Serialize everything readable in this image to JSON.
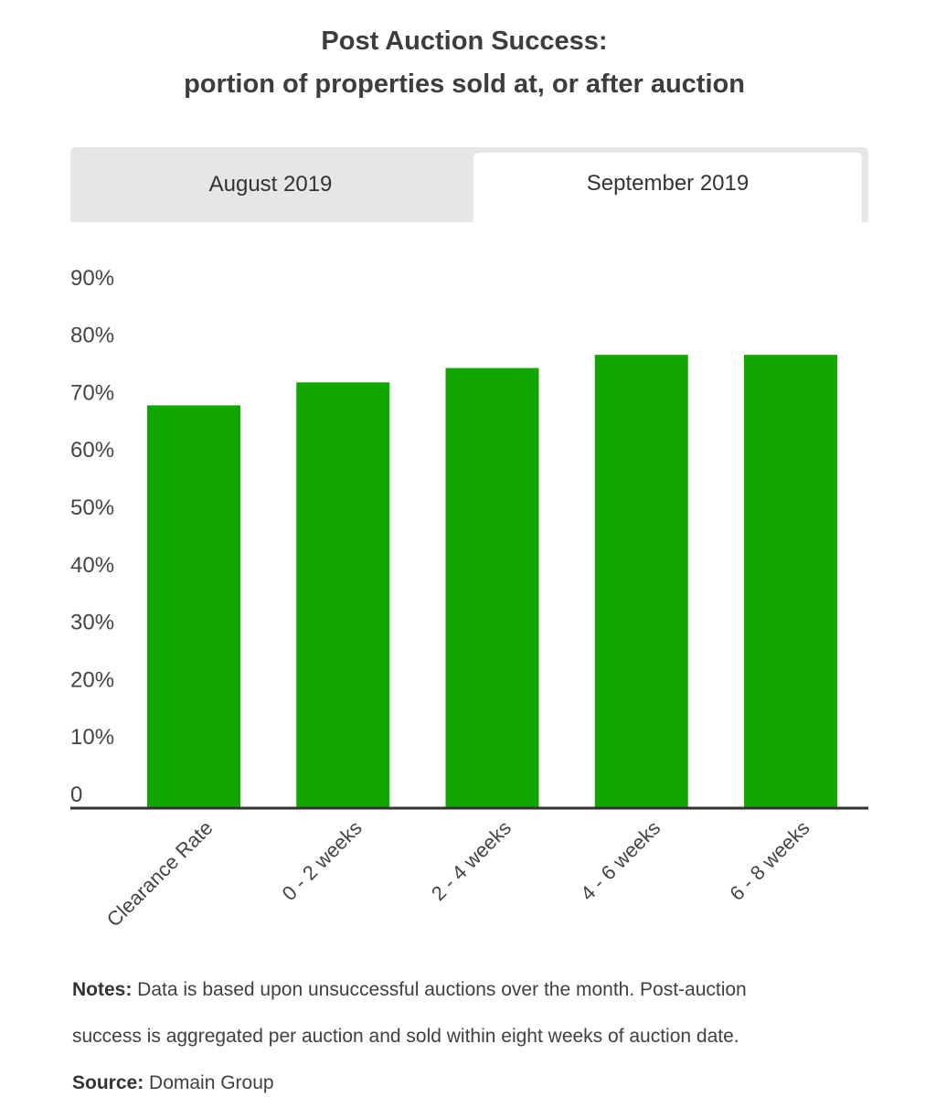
{
  "header": {
    "title_line1": "Post Auction Success:",
    "title_line2": "portion of properties sold at, or after auction"
  },
  "tabs": [
    {
      "label": "August 2019",
      "active": false
    },
    {
      "label": "September 2019",
      "active": true
    }
  ],
  "chart_data": {
    "type": "bar",
    "categories": [
      "Clearance Rate",
      "0 - 2 weeks",
      "2 - 4 weeks",
      "4 - 6 weeks",
      "6 - 8 weeks"
    ],
    "values": [
      70,
      74,
      76.5,
      78.8,
      78.8
    ],
    "yticks": [
      "0",
      "10%",
      "20%",
      "30%",
      "40%",
      "50%",
      "60%",
      "70%",
      "80%",
      "90%"
    ],
    "ylim": [
      0,
      93
    ],
    "grid": false,
    "bar_color": "#12a600",
    "axis_color": "#333333"
  },
  "notes": {
    "label": "Notes:",
    "text_line1": " Data is based upon unsuccessful auctions over the month. Post-auction",
    "text_line2": "success is aggregated per auction and sold within eight weeks of auction date."
  },
  "source": {
    "label": "Source:",
    "text": " Domain Group"
  }
}
